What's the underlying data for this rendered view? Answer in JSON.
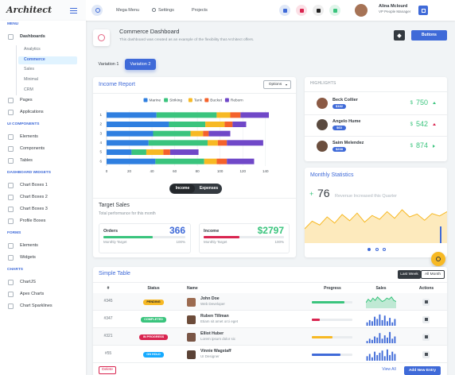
{
  "header": {
    "logo": "Architect",
    "menu": [
      "Mega Menu",
      "Settings",
      "Projects"
    ],
    "user_name": "Alina Mclourd",
    "user_role": "VP People Manager"
  },
  "sidebar": {
    "sections": [
      {
        "title": "MENU",
        "items": [
          {
            "label": "Dashboards",
            "children": [
              {
                "label": "Analytics"
              },
              {
                "label": "Commerce",
                "active": true
              },
              {
                "label": "Sales"
              },
              {
                "label": "Minimal"
              },
              {
                "label": "CRM"
              }
            ]
          },
          {
            "label": "Pages"
          },
          {
            "label": "Applications"
          }
        ]
      },
      {
        "title": "UI COMPONENTS",
        "items": [
          {
            "label": "Elements"
          },
          {
            "label": "Components"
          },
          {
            "label": "Tables"
          }
        ]
      },
      {
        "title": "DASHBOARD WIDGETS",
        "items": [
          {
            "label": "Chart Boxes 1"
          },
          {
            "label": "Chart Boxes 2"
          },
          {
            "label": "Chart Boxes 3"
          },
          {
            "label": "Profile Boxes"
          }
        ]
      },
      {
        "title": "FORMS",
        "items": [
          {
            "label": "Elements"
          },
          {
            "label": "Widgets"
          }
        ]
      },
      {
        "title": "CHARTS",
        "items": [
          {
            "label": "ChartJS"
          },
          {
            "label": "Apex Charts"
          },
          {
            "label": "Chart Sparklines"
          }
        ]
      }
    ]
  },
  "page_header": {
    "title": "Commerce Dashboard",
    "subtitle": "This dashboard was created as an example of the flexibility that Architect offers.",
    "button": "Buttons"
  },
  "tabs": [
    {
      "label": "Variation 1"
    },
    {
      "label": "Variation 2",
      "active": true
    }
  ],
  "income_report": {
    "title": "Income Report",
    "options": "Options",
    "chart_data": {
      "type": "bar",
      "orientation": "horizontal",
      "stacked": true,
      "legend": "top",
      "grid": true,
      "categories": [
        "1",
        "2",
        "3",
        "4",
        "5",
        "6"
      ],
      "series": [
        {
          "name": "Marine",
          "color": "#2f7fe0",
          "values": [
            44,
            55,
            41,
            37,
            22,
            43
          ]
        },
        {
          "name": "Striking",
          "color": "#3ac47d",
          "values": [
            53,
            32,
            33,
            52,
            13,
            43
          ]
        },
        {
          "name": "Tank",
          "color": "#f7b924",
          "values": [
            12,
            17,
            11,
            9,
            15,
            11
          ]
        },
        {
          "name": "Bucket",
          "color": "#f4622b",
          "values": [
            9,
            7,
            5,
            8,
            6,
            9
          ]
        },
        {
          "name": "Reborn",
          "color": "#7048c8",
          "values": [
            25,
            12,
            19,
            32,
            25,
            24
          ]
        }
      ],
      "xlim": [
        0,
        150
      ],
      "xticks": [
        0,
        20,
        40,
        60,
        80,
        100,
        120,
        140
      ]
    },
    "toggle": [
      {
        "label": "Income",
        "active": true
      },
      {
        "label": "Expenses"
      }
    ]
  },
  "target_sales": {
    "title": "Target Sales",
    "subtitle": "Total performance for this month",
    "cards": [
      {
        "label": "Orders",
        "value": "366",
        "color": "#3f6ad8",
        "bar_color": "#3ac47d",
        "progress": 60,
        "target_label": "Monthly Target",
        "target": "100%"
      },
      {
        "label": "Income",
        "value": "$2797",
        "color": "#3ac47d",
        "bar_color": "#d92550",
        "progress": 45,
        "target_label": "Monthly Target",
        "target": "100%"
      }
    ]
  },
  "highlights": {
    "title": "HIGHLIGHTS",
    "people": [
      {
        "name": "Beck Collier",
        "badge": "$182",
        "currency": "$",
        "value": "750",
        "trend": "up",
        "trend_color": "#3ac47d",
        "avatar": "#8b5a44"
      },
      {
        "name": "Angelo Hume",
        "badge": "$63",
        "currency": "$",
        "value": "542",
        "trend": "up",
        "trend_color": "#d92550",
        "avatar": "#5a4a3f"
      },
      {
        "name": "Saim Melendez",
        "badge": "$238",
        "currency": "$",
        "value": "874",
        "trend": "right",
        "trend_color": "#3ac47d",
        "avatar": "#6b4e3d"
      }
    ]
  },
  "monthly_statistics": {
    "title": "Monthly Statistics",
    "sign": "+",
    "value": "76",
    "caption": "Revenue Increased this Quarter",
    "chart_data": {
      "type": "area",
      "color": "#f7b924",
      "ylim": [
        0,
        80
      ],
      "values": [
        30,
        46,
        38,
        55,
        42,
        60,
        47,
        63,
        44,
        58,
        50,
        66,
        52,
        70,
        55,
        61,
        48,
        62,
        57,
        66
      ]
    }
  },
  "simple_table": {
    "title": "Simple Table",
    "filters": [
      {
        "label": "Last Week",
        "active": true
      },
      {
        "label": "All Month"
      }
    ],
    "columns": [
      "#",
      "Status",
      "Name",
      "Progress",
      "Sales",
      "Actions"
    ],
    "rows": [
      {
        "id": "#345",
        "status": "PENDING",
        "status_color": "#f7b924",
        "name": "John Doe",
        "role": "Web Developer",
        "avatar": "#9c6b50",
        "progress": 80,
        "progress_color": "#3ac47d",
        "sales": {
          "type": "area",
          "color": "#3ac47d",
          "ylim": [
            0,
            12
          ],
          "values": [
            5,
            8,
            6,
            9,
            7,
            10,
            8,
            6,
            7,
            9,
            8,
            10,
            7,
            6
          ]
        }
      },
      {
        "id": "#347",
        "status": "COMPLETED",
        "status_color": "#3ac47d",
        "name": "Ruben Tillman",
        "role": "Etiam sit amet orci eget",
        "avatar": "#6d4c3a",
        "progress": 20,
        "progress_color": "#d92550",
        "sales": {
          "type": "bar",
          "color": "#3f6ad8",
          "ylim": [
            0,
            12
          ],
          "values": [
            3,
            5,
            4,
            8,
            6,
            10,
            5,
            9,
            4,
            7,
            3,
            6
          ]
        }
      },
      {
        "id": "#321",
        "status": "IN PROGRESS",
        "status_color": "#d92550",
        "name": "Elliot Huber",
        "role": "Lorem ipsum dolor sic",
        "avatar": "#7a5646",
        "progress": 50,
        "progress_color": "#f7b924",
        "sales": {
          "type": "bar",
          "color": "#3f6ad8",
          "ylim": [
            0,
            12
          ],
          "values": [
            2,
            4,
            3,
            6,
            5,
            9,
            4,
            7,
            5,
            10,
            4,
            6
          ]
        }
      },
      {
        "id": "#55",
        "status": "ON HOLD",
        "status_color": "#16aaff",
        "name": "Vinnie Wagstaff",
        "role": "UI Designer",
        "avatar": "#5b4236",
        "progress": 70,
        "progress_color": "#3f6ad8",
        "sales": {
          "type": "bar",
          "color": "#3f6ad8",
          "ylim": [
            0,
            12
          ],
          "values": [
            4,
            6,
            3,
            8,
            5,
            7,
            9,
            4,
            10,
            5,
            8,
            6
          ]
        }
      }
    ],
    "footer": {
      "delete": "Delete",
      "view_all": "View All",
      "add": "Add New Entry"
    }
  }
}
